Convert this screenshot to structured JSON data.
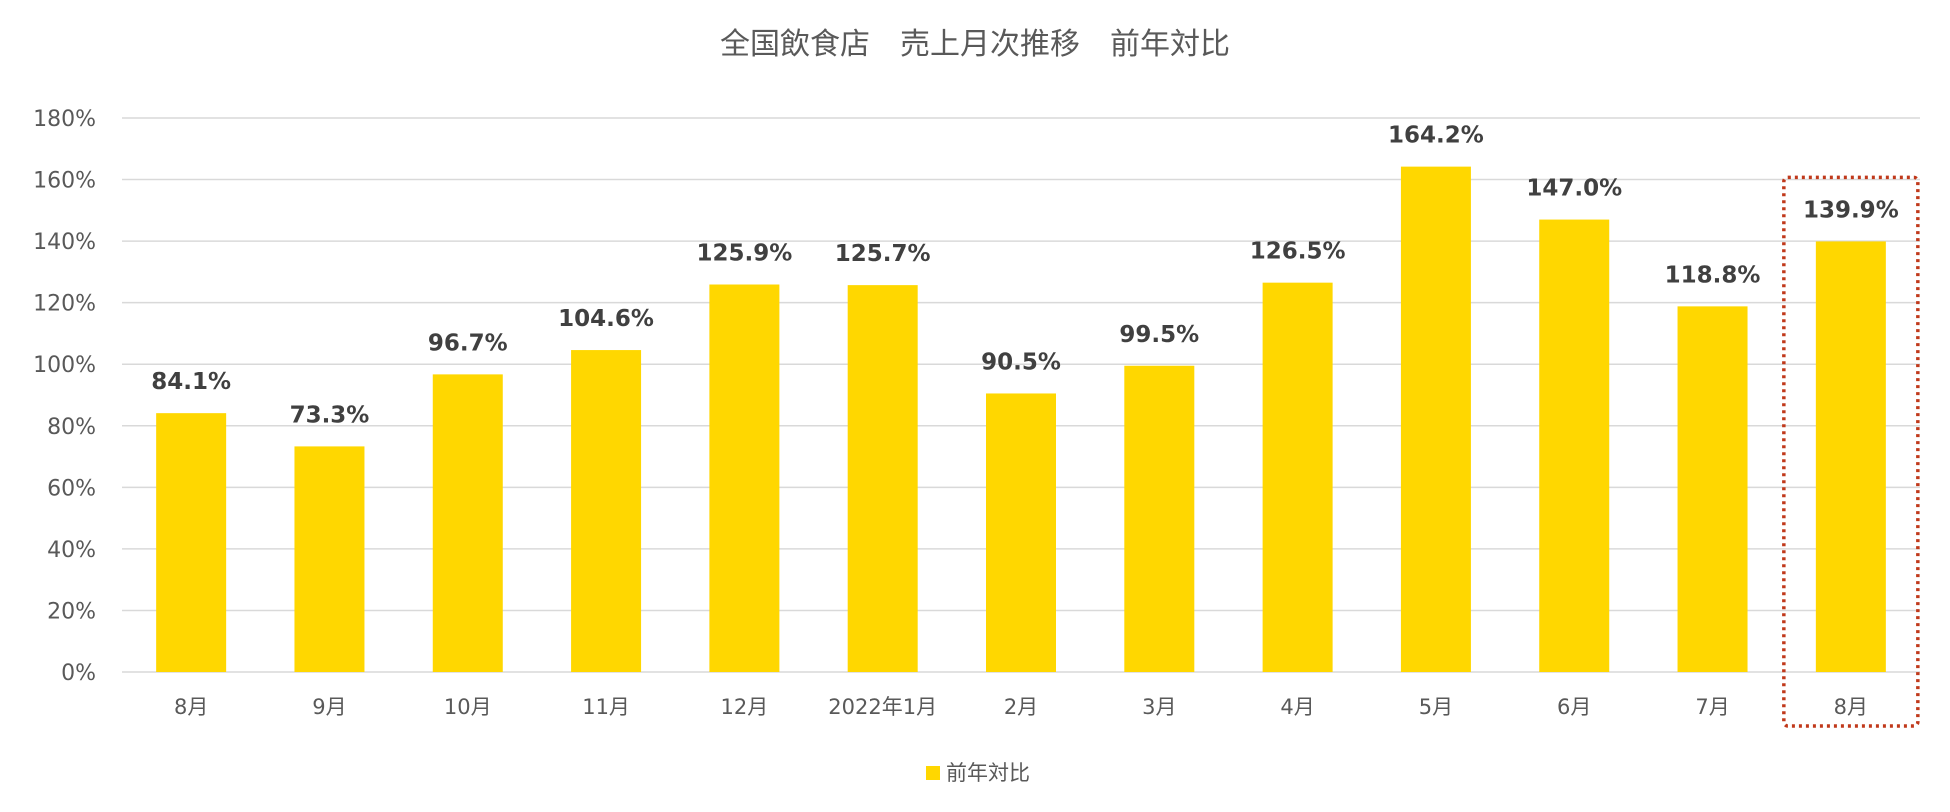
{
  "chart_data": {
    "type": "bar",
    "title": "全国飲食店　売上月次推移　前年対比",
    "categories": [
      "8月",
      "9月",
      "10月",
      "11月",
      "12月",
      "2022年1月",
      "2月",
      "3月",
      "4月",
      "5月",
      "6月",
      "7月",
      "8月"
    ],
    "series": [
      {
        "name": "前年対比",
        "color": "#FFD700",
        "values": [
          84.1,
          73.3,
          96.7,
          104.6,
          125.9,
          125.7,
          90.5,
          99.5,
          126.5,
          164.2,
          147.0,
          118.8,
          139.9
        ],
        "labels": [
          "84.1%",
          "73.3%",
          "96.7%",
          "104.6%",
          "125.9%",
          "125.7%",
          "90.5%",
          "99.5%",
          "126.5%",
          "164.2%",
          "147.0%",
          "118.8%",
          "139.9%"
        ]
      }
    ],
    "yticks": [
      "0%",
      "20%",
      "40%",
      "60%",
      "80%",
      "100%",
      "120%",
      "140%",
      "160%",
      "180%"
    ],
    "ylim": [
      0,
      180
    ],
    "grid": true,
    "legend_position": "bottom",
    "highlight_category_index": 12,
    "highlight_color": "#C0391B"
  }
}
